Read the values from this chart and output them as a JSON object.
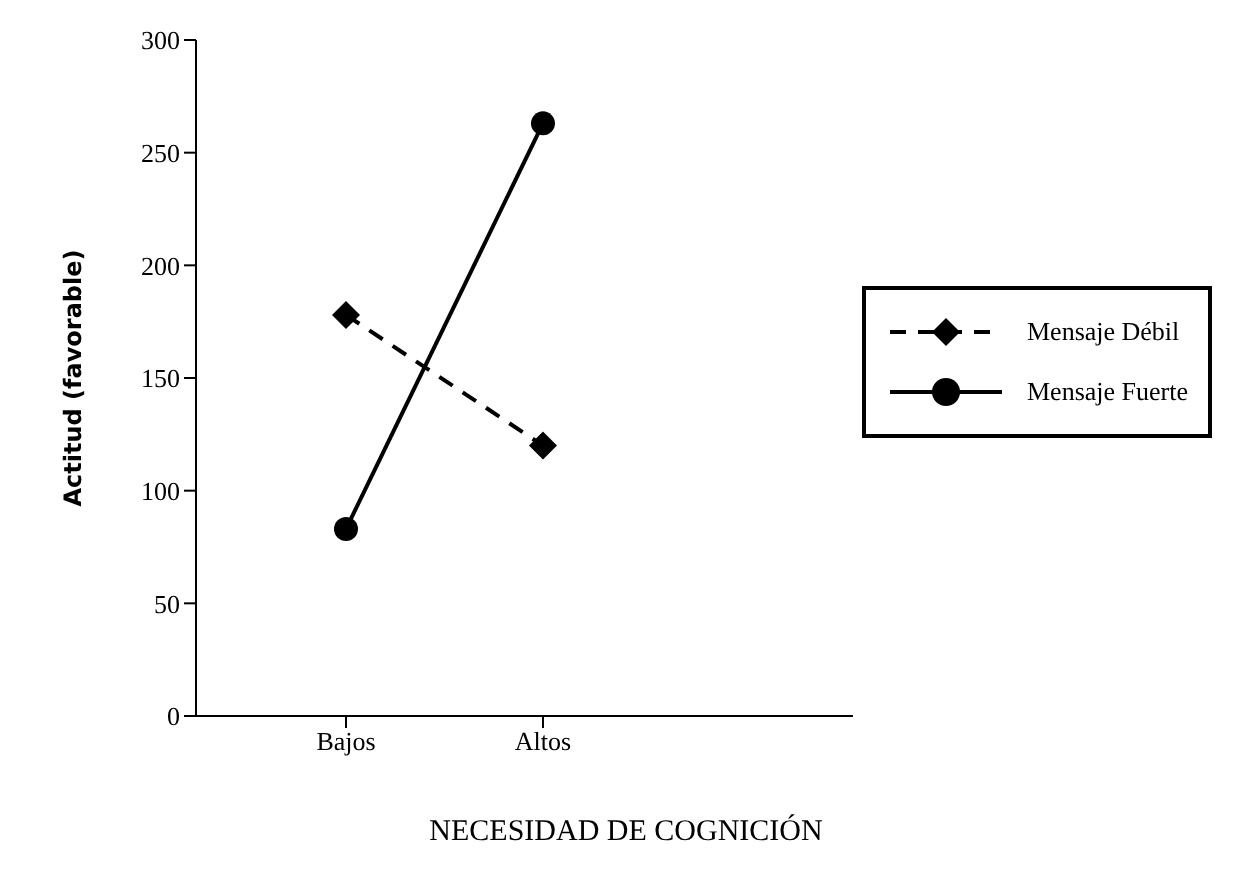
{
  "chart_data": {
    "type": "line",
    "xlabel": "NECESIDAD DE COGNICIÓN",
    "ylabel": "Actitud (favorable)",
    "categories": [
      "Bajos",
      "Altos"
    ],
    "series": [
      {
        "name": "Mensaje Débil",
        "color": "#000000",
        "values": [
          178,
          120
        ],
        "marker": "diamond",
        "line_style": "dashed"
      },
      {
        "name": "Mensaje Fuerte",
        "color": "#000000",
        "values": [
          83,
          263
        ],
        "marker": "circle",
        "line_style": "solid"
      }
    ],
    "ylim": [
      0,
      300
    ],
    "yticks": [
      0,
      50,
      100,
      150,
      200,
      250,
      300
    ],
    "grid": false,
    "legend": "right"
  }
}
